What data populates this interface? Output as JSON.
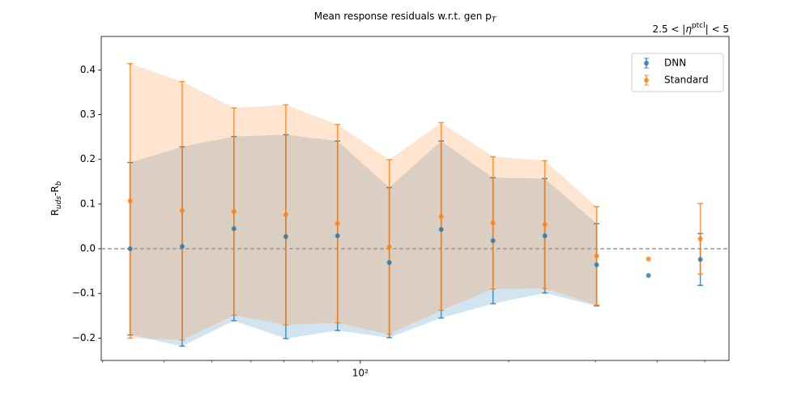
{
  "chart_data": {
    "type": "errorbar",
    "title": [
      {
        "text": "Mean response residuals w.r.t. gen p"
      },
      {
        "text": "T",
        "sub": true,
        "italic": true
      }
    ],
    "annotation": [
      {
        "text": "2.5 < |"
      },
      {
        "text": "η",
        "italic": true
      },
      {
        "text": "ptcl",
        "sup": true
      },
      {
        "text": "| < 5"
      }
    ],
    "ylabel": [
      {
        "text": "R"
      },
      {
        "text": "uds",
        "sub": true,
        "italic": true
      },
      {
        "text": "-R"
      },
      {
        "text": "b",
        "sub": true,
        "italic": true
      }
    ],
    "x": [
      34.1,
      43.5,
      55.4,
      70.6,
      89.9,
      114.5,
      145.9,
      185.9,
      236.8,
      301.7,
      384.4,
      489.7
    ],
    "series": [
      {
        "name": "DNN",
        "color": "#1f77b4",
        "values": [
          0.0,
          0.005,
          0.045,
          0.027,
          0.029,
          -0.031,
          0.043,
          0.018,
          0.029,
          -0.036,
          -0.06,
          -0.024
        ],
        "errors": [
          0.193,
          0.223,
          0.206,
          0.228,
          0.212,
          0.168,
          0.198,
          0.141,
          0.128,
          0.092,
          null,
          0.058
        ]
      },
      {
        "name": "Standard",
        "color": "#ff7f0e",
        "values": [
          0.107,
          0.085,
          0.083,
          0.076,
          0.056,
          0.004,
          0.072,
          0.058,
          0.054,
          -0.016,
          -0.023,
          0.022
        ],
        "errors": [
          0.307,
          0.289,
          0.232,
          0.246,
          0.222,
          0.195,
          0.21,
          0.148,
          0.143,
          0.11,
          null,
          0.079
        ]
      }
    ],
    "xscale": "log",
    "xlim": [
      29.8,
      560
    ],
    "xticks": [
      {
        "value": 100,
        "label": "10²"
      }
    ],
    "xminor_ticks": [
      30,
      40,
      50,
      60,
      70,
      80,
      90,
      200,
      300,
      400,
      500
    ],
    "ylim": [
      -0.25,
      0.475
    ],
    "yticks": [
      {
        "value": -0.2,
        "label": "−0.2"
      },
      {
        "value": -0.1,
        "label": "−0.1"
      },
      {
        "value": 0,
        "label": "0.0"
      },
      0.1,
      0.2,
      0.3,
      0.4
    ],
    "hline": {
      "value": 0,
      "color": "#999999"
    },
    "band": true,
    "legend": "upper right"
  }
}
